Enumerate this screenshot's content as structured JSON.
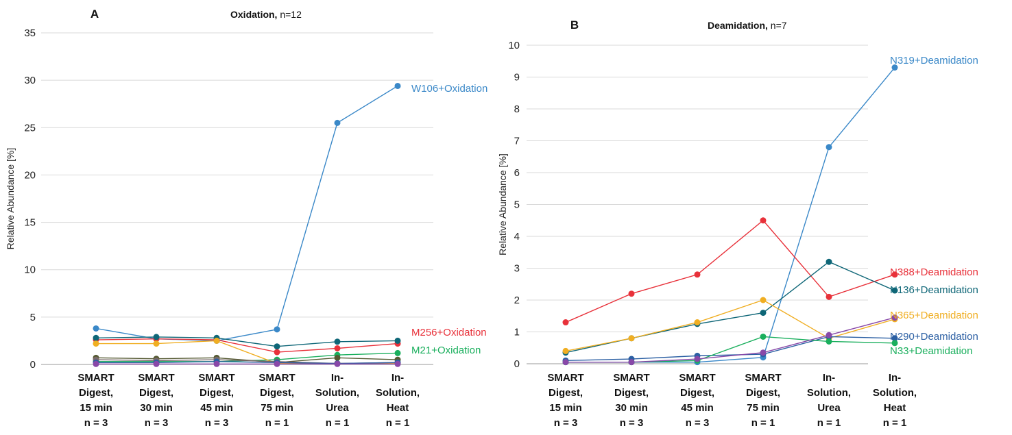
{
  "chart_data": [
    {
      "panel_label": "A",
      "type": "line",
      "title_bold": "Oxidation,",
      "title_rest": "n=12",
      "ylabel": "Relative Abundance [%]",
      "ylim": [
        0,
        35
      ],
      "yticks": [
        0,
        5,
        10,
        15,
        20,
        25,
        30,
        35
      ],
      "grid": true,
      "categories": [
        [
          "SMART",
          "Digest,",
          "15 min",
          "n = 3"
        ],
        [
          "SMART",
          "Digest,",
          "30 min",
          "n = 3"
        ],
        [
          "SMART",
          "Digest,",
          "45 min",
          "n = 3"
        ],
        [
          "SMART",
          "Digest,",
          "75 min",
          "n = 1"
        ],
        [
          "In-",
          "Solution,",
          "Urea",
          "n = 1"
        ],
        [
          "In-",
          "Solution,",
          "Heat",
          "n = 1"
        ]
      ],
      "series": [
        {
          "name": "W106+Oxidation",
          "color": "#3a88c8",
          "labeled": true,
          "values": [
            3.8,
            2.7,
            2.5,
            3.7,
            25.5,
            29.4
          ]
        },
        {
          "name": "M256+Oxidation",
          "color": "#e8313a",
          "labeled": true,
          "values": [
            2.6,
            2.7,
            2.6,
            1.3,
            1.7,
            2.2
          ]
        },
        {
          "name": "M21+Oxidation",
          "color": "#1aaf5d",
          "labeled": true,
          "values": [
            0.3,
            0.3,
            0.3,
            0.5,
            1.0,
            1.2
          ]
        },
        {
          "color": "#0e6677",
          "labeled": false,
          "values": [
            2.8,
            2.9,
            2.8,
            1.9,
            2.4,
            2.5
          ]
        },
        {
          "color": "#f0ae22",
          "labeled": false,
          "values": [
            2.2,
            2.2,
            2.5,
            0.1,
            0.1,
            0.1
          ]
        },
        {
          "color": "#555a32",
          "labeled": false,
          "values": [
            0.7,
            0.6,
            0.7,
            0.2,
            0.7,
            0.5
          ]
        },
        {
          "color": "#7a6a6a",
          "labeled": false,
          "values": [
            0.5,
            0.4,
            0.5,
            0.3,
            0.1,
            0.2
          ]
        },
        {
          "color": "#2b5fa3",
          "labeled": false,
          "values": [
            0.2,
            0.2,
            0.3,
            0.2,
            0.1,
            0.2
          ]
        },
        {
          "color": "#8848a8",
          "labeled": false,
          "values": [
            0.05,
            0.05,
            0.05,
            0.05,
            0.05,
            0.05
          ]
        }
      ]
    },
    {
      "panel_label": "B",
      "type": "line",
      "title_bold": "Deamidation,",
      "title_rest": "n=7",
      "ylabel": "Relative Abundance [%]",
      "ylim": [
        0,
        10
      ],
      "yticks": [
        0,
        1,
        2,
        3,
        4,
        5,
        6,
        7,
        8,
        9,
        10
      ],
      "grid": true,
      "categories": [
        [
          "SMART",
          "Digest,",
          "15 min",
          "n = 3"
        ],
        [
          "SMART",
          "Digest,",
          "30 min",
          "n = 3"
        ],
        [
          "SMART",
          "Digest,",
          "45 min",
          "n = 3"
        ],
        [
          "SMART",
          "Digest,",
          "75 min",
          "n = 1"
        ],
        [
          "In-",
          "Solution,",
          "Urea",
          "n = 1"
        ],
        [
          "In-",
          "Solution,",
          "Heat",
          "n = 1"
        ]
      ],
      "series": [
        {
          "name": "N319+Deamidation",
          "color": "#3a88c8",
          "labeled": true,
          "values": [
            0.05,
            0.05,
            0.05,
            0.2,
            6.8,
            9.3
          ]
        },
        {
          "name": "N388+Deamidation",
          "color": "#e8313a",
          "labeled": true,
          "values": [
            1.3,
            2.2,
            2.8,
            4.5,
            2.1,
            2.8
          ]
        },
        {
          "name": "N136+Deamidation",
          "color": "#0e6677",
          "labeled": true,
          "values": [
            0.35,
            0.8,
            1.25,
            1.6,
            3.2,
            2.3
          ]
        },
        {
          "name": "N365+Deamidation",
          "color": "#f0ae22",
          "labeled": true,
          "values": [
            0.4,
            0.8,
            1.3,
            2.0,
            0.8,
            1.4
          ]
        },
        {
          "name": "N290+Deamidation",
          "color": "#2b5fa3",
          "labeled": true,
          "values": [
            0.1,
            0.15,
            0.25,
            0.3,
            0.85,
            0.8
          ]
        },
        {
          "name": "N33+Deamidation",
          "color": "#1aaf5d",
          "labeled": true,
          "values": [
            0.05,
            0.05,
            0.1,
            0.85,
            0.7,
            0.65
          ]
        },
        {
          "color": "#8848a8",
          "labeled": false,
          "values": [
            0.05,
            0.05,
            0.15,
            0.35,
            0.9,
            1.45
          ]
        }
      ]
    }
  ]
}
